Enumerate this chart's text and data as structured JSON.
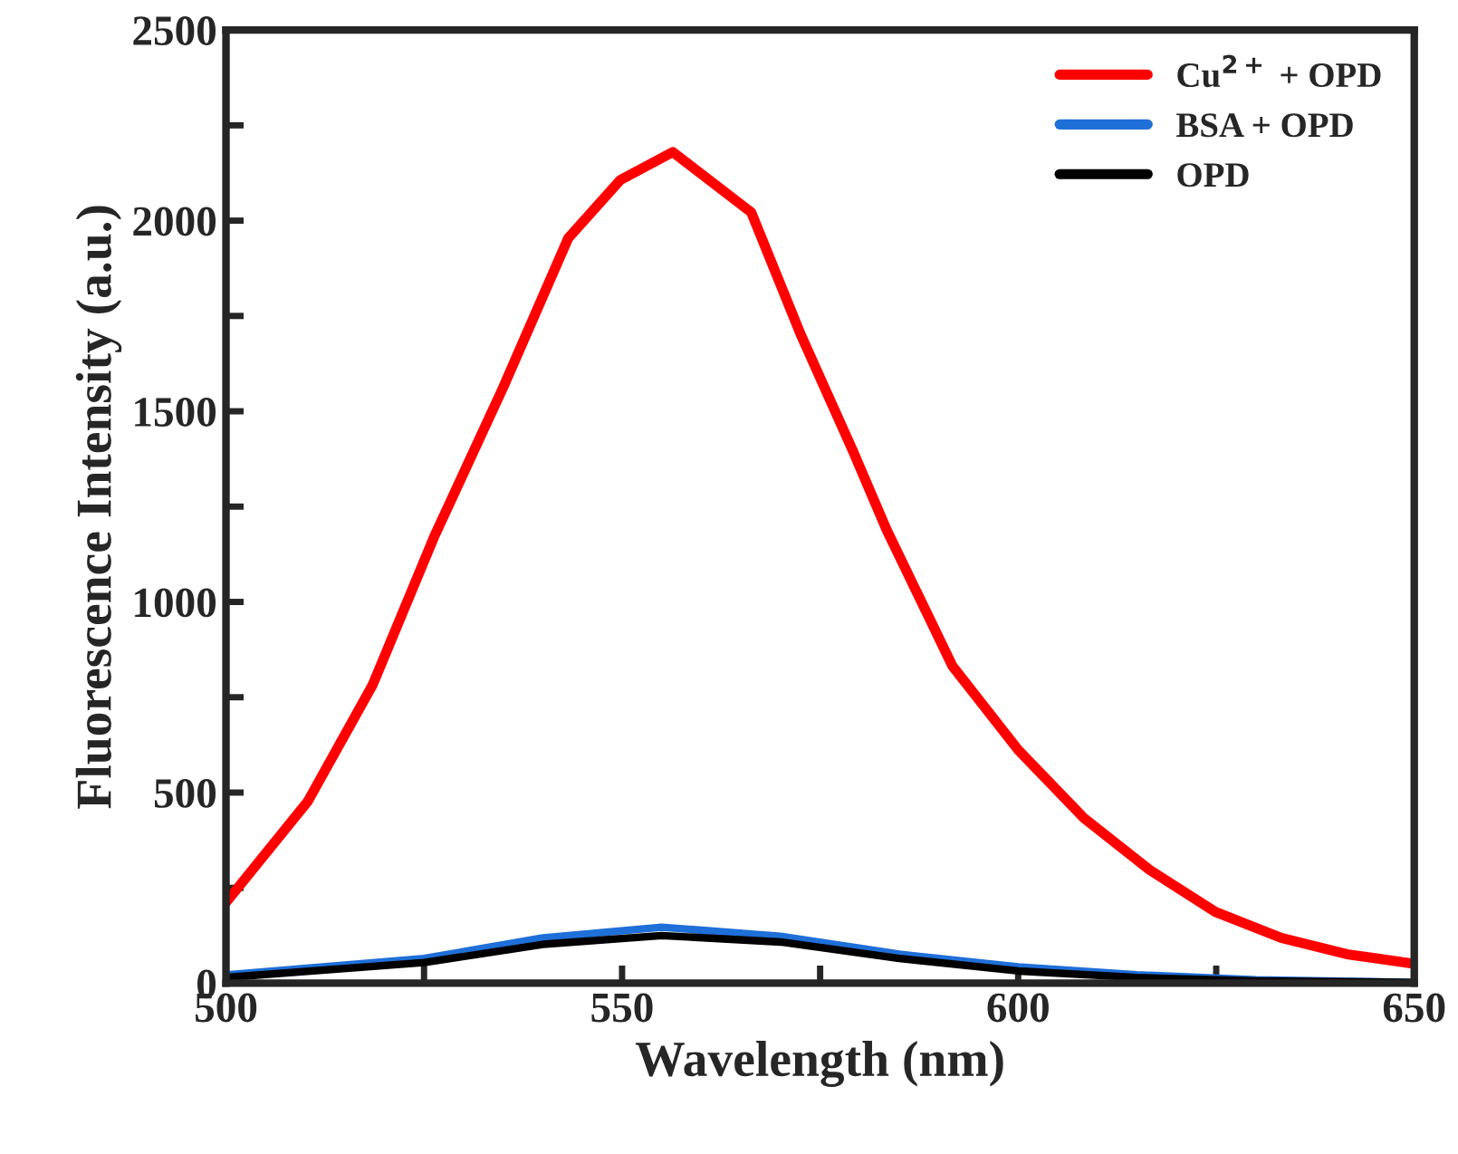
{
  "chart_data": {
    "type": "line",
    "xlabel": "Wavelength (nm)",
    "ylabel": "Fluorescence Intensity (a.u.)",
    "xlim": [
      500,
      650
    ],
    "ylim": [
      0,
      2500
    ],
    "xticks": [
      500,
      {
        "value": 525,
        "label": null
      },
      550,
      {
        "value": 575,
        "label": null
      },
      600,
      {
        "value": 625,
        "label": null
      },
      650
    ],
    "yticks": [
      0,
      {
        "value": 250,
        "label": null
      },
      500,
      {
        "value": 750,
        "label": null
      },
      1000,
      {
        "value": 1250,
        "label": null
      },
      1500,
      {
        "value": 1750,
        "label": null
      },
      2000,
      {
        "value": 2250,
        "label": null
      },
      2500
    ],
    "grid": false,
    "legend": "top right",
    "line_style": "solid",
    "marker": "none",
    "series": [
      {
        "name": "Cu$^{2+}$ + OPD",
        "color": "#ff0000",
        "x": [
          500,
          510.3,
          518.5,
          526.3,
          535,
          543.2,
          549.8,
          556.4,
          566.3,
          572.6,
          579.2,
          583.4,
          591.7,
          600,
          608.3,
          616.6,
          624.9,
          633.2,
          641.5,
          650
        ],
        "values": [
          212,
          476,
          782,
          1172,
          1563,
          1954,
          2107,
          2180,
          2022,
          1699,
          1393,
          1189,
          832,
          612,
          433,
          297,
          187,
          119,
          76,
          51
        ]
      },
      {
        "name": "BSA + OPD",
        "color": "#1f6fd8",
        "x": [
          500,
          525,
          540,
          555,
          570,
          585,
          600,
          615,
          630,
          650
        ],
        "values": [
          22,
          65,
          119,
          147,
          123,
          76,
          43,
          22,
          9,
          2
        ]
      },
      {
        "name": "OPD",
        "color": "#000000",
        "x": [
          500,
          525,
          540,
          555,
          570,
          585,
          600,
          615,
          630,
          650
        ],
        "values": [
          15,
          54,
          102,
          125,
          108,
          65,
          32,
          15,
          6,
          2
        ]
      }
    ]
  }
}
